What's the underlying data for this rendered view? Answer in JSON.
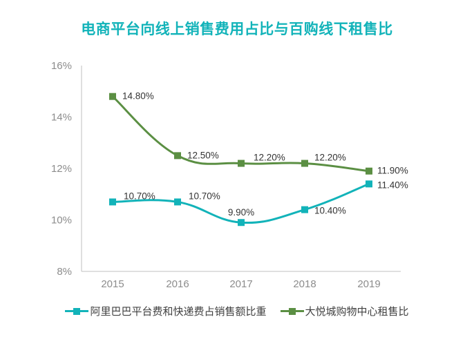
{
  "chart_data": {
    "type": "line",
    "title": "电商平台向线上销售费用占比与百购线下租售比",
    "xlabel": "",
    "ylabel": "",
    "categories": [
      "2015",
      "2016",
      "2017",
      "2018",
      "2019"
    ],
    "ylim": [
      8,
      16
    ],
    "yticks": [
      8,
      10,
      12,
      14,
      16
    ],
    "ytick_labels": [
      "8%",
      "10%",
      "12%",
      "14%",
      "16%"
    ],
    "grid": false,
    "legend_position": "bottom",
    "series": [
      {
        "name": "阿里巴巴平台费和快递费占销售额比重",
        "color": "#12b3b9",
        "values": [
          10.7,
          10.7,
          9.9,
          10.4,
          11.4
        ],
        "labels": [
          "10.70%",
          "10.70%",
          "9.90%",
          "10.40%",
          "11.40%"
        ]
      },
      {
        "name": "大悦城购物中心租售比",
        "color": "#5b8f43",
        "values": [
          14.8,
          12.5,
          12.2,
          12.2,
          11.9
        ],
        "labels": [
          "14.80%",
          "12.50%",
          "12.20%",
          "12.20%",
          "11.90%"
        ]
      }
    ]
  }
}
